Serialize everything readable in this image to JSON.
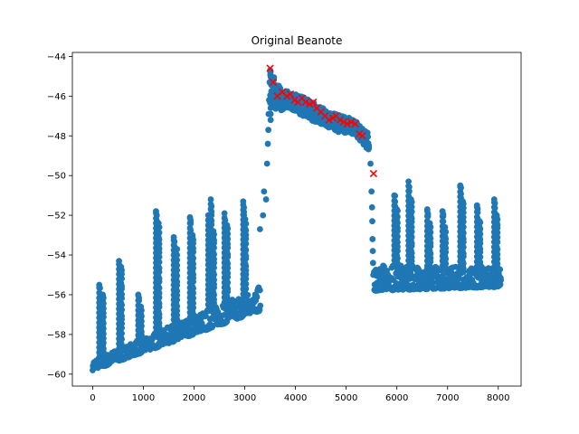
{
  "chart_data": {
    "type": "scatter",
    "title": "Original Beanote",
    "xlabel": "",
    "ylabel": "",
    "xlim": [
      -400,
      8450
    ],
    "ylim": [
      -60.6,
      -43.8
    ],
    "xticks": [
      0,
      1000,
      2000,
      3000,
      4000,
      5000,
      6000,
      7000,
      8000
    ],
    "yticks": [
      -60,
      -58,
      -56,
      -54,
      -52,
      -50,
      -48,
      -46,
      -44
    ],
    "grid": false,
    "legend": "none",
    "colors": {
      "points": "#1f77b4",
      "markers": "#ff0000"
    },
    "series": [
      {
        "marker": "circle",
        "segments": [
          {
            "x0": 0,
            "x1": 3300,
            "start_low": -59.8,
            "start_high": -59.3,
            "end_low": -56.8,
            "end_high": -55.6
          },
          {
            "x0": 5550,
            "x1": 8050,
            "start_low": -55.8,
            "start_high": -54.5,
            "end_low": -55.6,
            "end_high": -54.6
          }
        ],
        "peaks": [
          {
            "x": 130,
            "y": -55.5
          },
          {
            "x": 200,
            "y": -56.0
          },
          {
            "x": 520,
            "y": -54.3
          },
          {
            "x": 560,
            "y": -54.6
          },
          {
            "x": 900,
            "y": -56.0
          },
          {
            "x": 950,
            "y": -56.6
          },
          {
            "x": 1250,
            "y": -51.8
          },
          {
            "x": 1300,
            "y": -52.4
          },
          {
            "x": 1600,
            "y": -53.1
          },
          {
            "x": 1650,
            "y": -53.7
          },
          {
            "x": 1920,
            "y": -52.1
          },
          {
            "x": 1970,
            "y": -53.0
          },
          {
            "x": 2280,
            "y": -52.0
          },
          {
            "x": 2330,
            "y": -51.2
          },
          {
            "x": 2380,
            "y": -52.8
          },
          {
            "x": 2600,
            "y": -51.9
          },
          {
            "x": 2650,
            "y": -52.5
          },
          {
            "x": 2970,
            "y": -51.3
          },
          {
            "x": 3010,
            "y": -52.2
          },
          {
            "x": 5950,
            "y": -51.0
          },
          {
            "x": 6000,
            "y": -51.7
          },
          {
            "x": 6230,
            "y": -50.3
          },
          {
            "x": 6280,
            "y": -51.2
          },
          {
            "x": 6600,
            "y": -51.7
          },
          {
            "x": 6650,
            "y": -52.4
          },
          {
            "x": 6900,
            "y": -51.8
          },
          {
            "x": 6950,
            "y": -52.6
          },
          {
            "x": 7250,
            "y": -50.5
          },
          {
            "x": 7300,
            "y": -51.3
          },
          {
            "x": 7580,
            "y": -51.5
          },
          {
            "x": 7630,
            "y": -52.3
          },
          {
            "x": 7920,
            "y": -51.2
          },
          {
            "x": 7970,
            "y": -52.0
          }
        ],
        "ramp": [
          {
            "x": 3300,
            "y": -52.7
          },
          {
            "x": 3360,
            "y": -52.0
          },
          {
            "x": 3380,
            "y": -50.8
          },
          {
            "x": 3420,
            "y": -51.2
          },
          {
            "x": 3440,
            "y": -49.4
          },
          {
            "x": 3455,
            "y": -48.4
          },
          {
            "x": 3465,
            "y": -47.7
          },
          {
            "x": 3470,
            "y": -46.9
          },
          {
            "x": 3480,
            "y": -46.2
          },
          {
            "x": 3490,
            "y": -45.3
          },
          {
            "x": 3500,
            "y": -44.7
          }
        ],
        "plateau": [
          {
            "x": 3500,
            "low": -46.6,
            "high": -44.7
          },
          {
            "x": 3700,
            "low": -46.7,
            "high": -45.6
          },
          {
            "x": 4000,
            "low": -46.8,
            "high": -45.9
          },
          {
            "x": 4300,
            "low": -47.2,
            "high": -46.2
          },
          {
            "x": 4600,
            "low": -47.5,
            "high": -46.7
          },
          {
            "x": 4800,
            "low": -47.8,
            "high": -46.9
          },
          {
            "x": 5100,
            "low": -47.9,
            "high": -47.1
          },
          {
            "x": 5300,
            "low": -48.3,
            "high": -47.5
          },
          {
            "x": 5450,
            "low": -48.8,
            "high": -47.9
          }
        ],
        "drop": [
          {
            "x": 5480,
            "y": -49.4
          },
          {
            "x": 5500,
            "y": -50.8
          },
          {
            "x": 5510,
            "y": -51.6
          },
          {
            "x": 5515,
            "y": -52.3
          },
          {
            "x": 5520,
            "y": -53.2
          },
          {
            "x": 5525,
            "y": -53.8
          },
          {
            "x": 5530,
            "y": -54.4
          },
          {
            "x": 5535,
            "y": -55.0
          }
        ]
      },
      {
        "marker": "x",
        "points": [
          {
            "x": 3500,
            "y": -44.6
          },
          {
            "x": 3560,
            "y": -45.3
          },
          {
            "x": 3640,
            "y": -46.0
          },
          {
            "x": 3740,
            "y": -45.8
          },
          {
            "x": 3830,
            "y": -46.0
          },
          {
            "x": 3900,
            "y": -45.9
          },
          {
            "x": 3980,
            "y": -46.2
          },
          {
            "x": 4050,
            "y": -46.3
          },
          {
            "x": 4130,
            "y": -46.1
          },
          {
            "x": 4200,
            "y": -46.3
          },
          {
            "x": 4280,
            "y": -46.4
          },
          {
            "x": 4350,
            "y": -46.3
          },
          {
            "x": 4420,
            "y": -46.6
          },
          {
            "x": 4500,
            "y": -46.8
          },
          {
            "x": 4580,
            "y": -47.0
          },
          {
            "x": 4660,
            "y": -47.2
          },
          {
            "x": 4740,
            "y": -47.1
          },
          {
            "x": 4800,
            "y": -47.0
          },
          {
            "x": 4880,
            "y": -47.2
          },
          {
            "x": 4950,
            "y": -47.3
          },
          {
            "x": 5020,
            "y": -47.4
          },
          {
            "x": 5100,
            "y": -47.3
          },
          {
            "x": 5180,
            "y": -47.4
          },
          {
            "x": 5260,
            "y": -47.9
          },
          {
            "x": 5320,
            "y": -48.0
          },
          {
            "x": 5540,
            "y": -49.9
          }
        ]
      }
    ]
  }
}
